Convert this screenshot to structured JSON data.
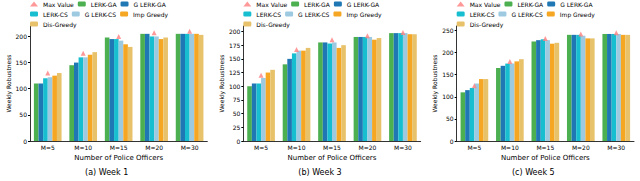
{
  "chart_data": [
    {
      "type": "bar",
      "title": "(a) Week 1",
      "x_label": "Number of Police Officers",
      "y_label": "Weekly Robustness",
      "categories": [
        "M=5",
        "M=10",
        "M=15",
        "M=20",
        "M=30"
      ],
      "ylim": [
        0,
        220
      ],
      "yticks": [
        0,
        50,
        100,
        150,
        200
      ],
      "legend": "top",
      "series": [
        {
          "name": "Max Value",
          "type": "scatter",
          "marker": "triangle",
          "color": "#ff7f7f",
          "values": [
            130,
            168,
            200,
            207,
            210
          ]
        },
        {
          "name": "LERK-GA",
          "color": "#4caf50",
          "values": [
            110,
            145,
            198,
            205,
            205
          ]
        },
        {
          "name": "G LERK-GA",
          "color": "#1f77b4",
          "values": [
            110,
            150,
            195,
            205,
            205
          ]
        },
        {
          "name": "LERK-CS",
          "color": "#17becf",
          "values": [
            120,
            160,
            195,
            200,
            205
          ]
        },
        {
          "name": "G LERK-CS",
          "color": "#9ecae1",
          "values": [
            122,
            160,
            192,
            200,
            205
          ]
        },
        {
          "name": "Imp Greedy",
          "color": "#f5a623",
          "values": [
            125,
            165,
            185,
            195,
            205
          ]
        },
        {
          "name": "Dis-Greedy",
          "color": "#e8c26a",
          "values": [
            130,
            170,
            180,
            198,
            203
          ]
        }
      ]
    },
    {
      "type": "bar",
      "title": "(b) Week 3",
      "x_label": "Number of Police Officers",
      "y_label": "Weekly Robustness",
      "categories": [
        "M=5",
        "M=10",
        "M=15",
        "M=20",
        "M=30"
      ],
      "ylim": [
        0,
        210
      ],
      "yticks": [
        0,
        25,
        50,
        75,
        100,
        125,
        150,
        175,
        200
      ],
      "legend": "top",
      "series": [
        {
          "name": "Max Value",
          "type": "scatter",
          "marker": "triangle",
          "color": "#ff7f7f",
          "values": [
            120,
            167,
            185,
            192,
            198
          ]
        },
        {
          "name": "LERK-GA",
          "color": "#4caf50",
          "values": [
            100,
            140,
            180,
            190,
            197
          ]
        },
        {
          "name": "G LERK-GA",
          "color": "#1f77b4",
          "values": [
            105,
            150,
            180,
            190,
            197
          ]
        },
        {
          "name": "LERK-CS",
          "color": "#17becf",
          "values": [
            105,
            160,
            178,
            190,
            197
          ]
        },
        {
          "name": "G LERK-CS",
          "color": "#9ecae1",
          "values": [
            115,
            165,
            180,
            190,
            197
          ]
        },
        {
          "name": "Imp Greedy",
          "color": "#f5a623",
          "values": [
            125,
            165,
            170,
            185,
            195
          ]
        },
        {
          "name": "Dis-Greedy",
          "color": "#e8c26a",
          "values": [
            130,
            170,
            175,
            188,
            195
          ]
        }
      ]
    },
    {
      "type": "bar",
      "title": "(c) Week 5",
      "x_label": "Number of Police Officers",
      "y_label": "Weekly Robustness",
      "categories": [
        "M=5",
        "M=10",
        "M=15",
        "M=20",
        "M=30"
      ],
      "ylim": [
        0,
        260
      ],
      "yticks": [
        0,
        50,
        100,
        150,
        200,
        250
      ],
      "legend": "top",
      "series": [
        {
          "name": "Max Value",
          "type": "scatter",
          "marker": "triangle",
          "color": "#ff7f7f",
          "values": [
            125,
            180,
            232,
            242,
            245
          ]
        },
        {
          "name": "LERK-GA",
          "color": "#4caf50",
          "values": [
            110,
            165,
            225,
            240,
            242
          ]
        },
        {
          "name": "G LERK-GA",
          "color": "#1f77b4",
          "values": [
            115,
            170,
            228,
            240,
            242
          ]
        },
        {
          "name": "LERK-CS",
          "color": "#17becf",
          "values": [
            120,
            175,
            230,
            240,
            242
          ]
        },
        {
          "name": "G LERK-CS",
          "color": "#9ecae1",
          "values": [
            130,
            175,
            228,
            238,
            242
          ]
        },
        {
          "name": "Imp Greedy",
          "color": "#f5a623",
          "values": [
            140,
            180,
            220,
            232,
            240
          ]
        },
        {
          "name": "Dis-Greedy",
          "color": "#e8c26a",
          "values": [
            140,
            185,
            222,
            232,
            240
          ]
        }
      ]
    }
  ]
}
